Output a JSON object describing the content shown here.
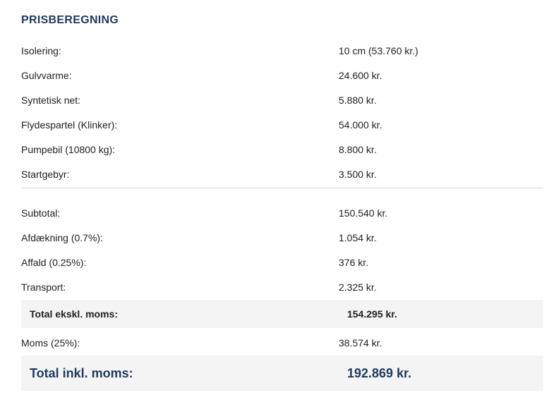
{
  "page": {
    "title": "PRISBEREGNING"
  },
  "colors": {
    "navy": "#1e3a5f",
    "text": "#212121",
    "highlight_bg": "#f4f4f4",
    "divider": "#d8d8d8",
    "background": "#ffffff"
  },
  "line_items": [
    {
      "label": "Isolering:",
      "value": "10 cm (53.760 kr.)"
    },
    {
      "label": "Gulvvarme:",
      "value": "24.600 kr."
    },
    {
      "label": "Syntetisk net:",
      "value": "5.880 kr."
    },
    {
      "label": "Flydespartel (Klinker):",
      "value": "54.000 kr."
    },
    {
      "label": "Pumpebil (10800 kg):",
      "value": "8.800 kr."
    },
    {
      "label": "Startgebyr:",
      "value": "3.500 kr."
    }
  ],
  "summary_items": [
    {
      "label": "Subtotal:",
      "value": "150.540 kr."
    },
    {
      "label": "Afdækning (0.7%):",
      "value": "1.054 kr."
    },
    {
      "label": "Affald (0.25%):",
      "value": "376 kr."
    },
    {
      "label": "Transport:",
      "value": "2.325 kr."
    }
  ],
  "total_excl": {
    "label": "Total ekskl. moms:",
    "value": "154.295 kr."
  },
  "vat": {
    "label": "Moms (25%):",
    "value": "38.574 kr."
  },
  "total_incl": {
    "label": "Total inkl. moms:",
    "value": "192.869 kr."
  }
}
